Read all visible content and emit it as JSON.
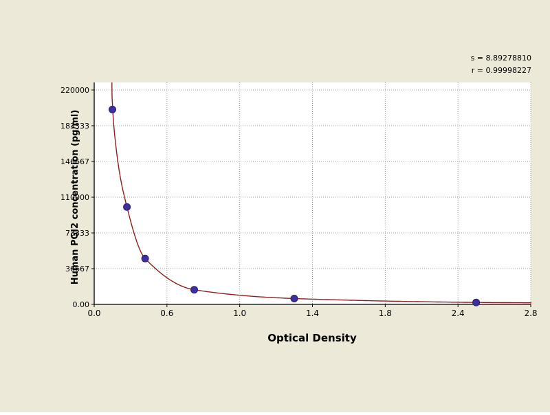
{
  "annotations": {
    "s_value": "s = 8.89278810",
    "r_value": "r = 0.99998227"
  },
  "colors": {
    "background": "#ece9d8",
    "plot_background": "#ffffff",
    "grid": "#999999",
    "axis": "#000000",
    "curve": "#8b1e1e",
    "marker": "#3d2f9c",
    "marker_edge": "#2a2070",
    "text": "#000000"
  },
  "chart_data": {
    "type": "scatter",
    "title": "",
    "xlabel": "Optical Density",
    "ylabel": "Human PGI2 concentration (pg/ml)",
    "x_ticks": [
      "0.0",
      "0.6",
      "1.0",
      "1.4",
      "1.8",
      "2.4",
      "2.8"
    ],
    "y_ticks": [
      "0.00",
      "36667",
      "73333",
      "110000",
      "146667",
      "183333",
      "220000"
    ],
    "xlim": [
      0.0,
      2.8
    ],
    "ylim": [
      0,
      220000
    ],
    "grid": true,
    "legend": false,
    "series": [
      {
        "name": "standard-points",
        "type": "scatter",
        "x": [
          0.15,
          0.27,
          0.42,
          0.75,
          1.3,
          2.5
        ],
        "y": [
          200000,
          100000,
          47000,
          15000,
          6000,
          2000
        ]
      },
      {
        "name": "fitted-curve",
        "type": "line"
      }
    ]
  }
}
